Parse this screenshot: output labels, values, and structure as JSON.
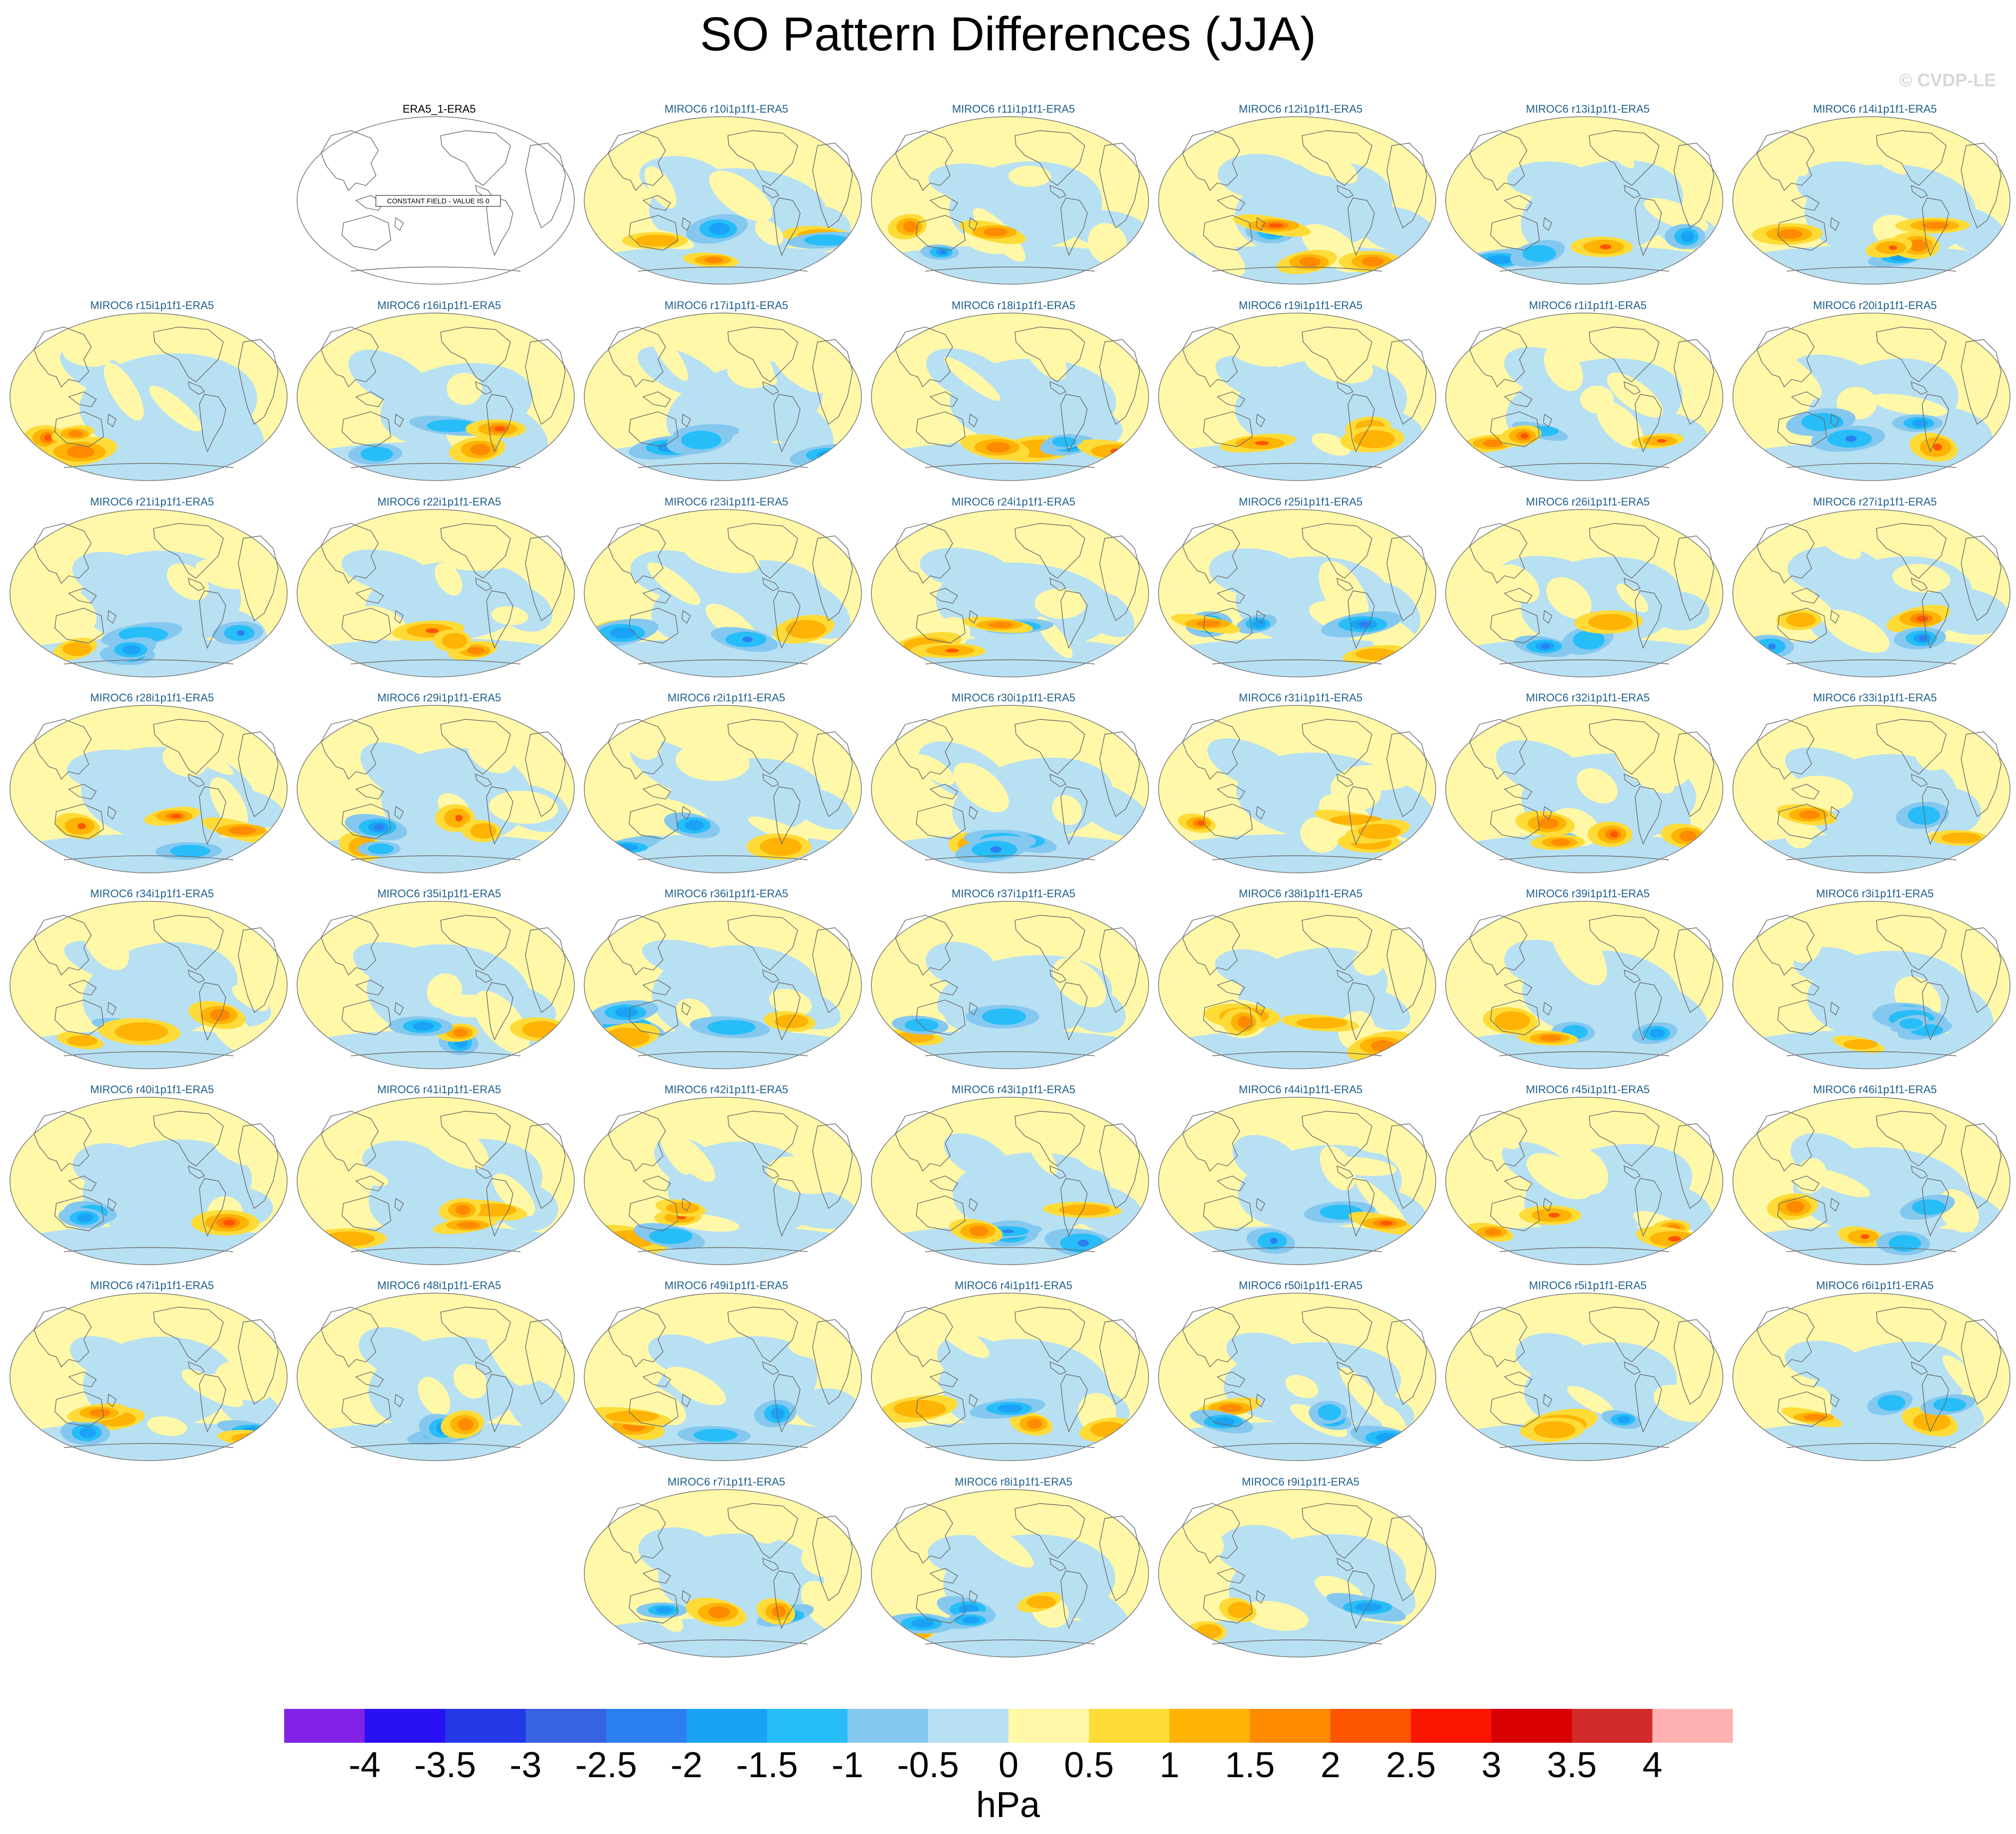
{
  "title": "SO Pattern Differences (JJA)",
  "watermark": "© CVDP-LE",
  "units": "hPa",
  "colorbar": {
    "labels": [
      "-4",
      "-3.5",
      "-3",
      "-2.5",
      "-2",
      "-1.5",
      "-1",
      "-0.5",
      "0",
      "0.5",
      "1",
      "1.5",
      "2",
      "2.5",
      "3",
      "3.5",
      "4"
    ],
    "colors": [
      "#8222e6",
      "#2a10f5",
      "#2438e8",
      "#3762e0",
      "#2b7ff0",
      "#1aa3f6",
      "#27bdf8",
      "#85c8ef",
      "#b8e0f3",
      "#fff8a8",
      "#fedb37",
      "#feb305",
      "#fe8a00",
      "#fe5500",
      "#fc1500",
      "#d80000",
      "#d32a2a",
      "#ffb0b0"
    ]
  },
  "panels": [
    {
      "label": "ERA5_1-ERA5",
      "row": 0,
      "col": 1,
      "observed": true,
      "note": "CONSTANT FIELD - VALUE IS 0"
    },
    {
      "label": "MIROC6 r10i1p1f1-ERA5",
      "row": 0,
      "col": 2
    },
    {
      "label": "MIROC6 r11i1p1f1-ERA5",
      "row": 0,
      "col": 3
    },
    {
      "label": "MIROC6 r12i1p1f1-ERA5",
      "row": 0,
      "col": 4
    },
    {
      "label": "MIROC6 r13i1p1f1-ERA5",
      "row": 0,
      "col": 5
    },
    {
      "label": "MIROC6 r14i1p1f1-ERA5",
      "row": 0,
      "col": 6
    },
    {
      "label": "MIROC6 r15i1p1f1-ERA5",
      "row": 1,
      "col": 0
    },
    {
      "label": "MIROC6 r16i1p1f1-ERA5",
      "row": 1,
      "col": 1
    },
    {
      "label": "MIROC6 r17i1p1f1-ERA5",
      "row": 1,
      "col": 2
    },
    {
      "label": "MIROC6 r18i1p1f1-ERA5",
      "row": 1,
      "col": 3
    },
    {
      "label": "MIROC6 r19i1p1f1-ERA5",
      "row": 1,
      "col": 4
    },
    {
      "label": "MIROC6 r1i1p1f1-ERA5",
      "row": 1,
      "col": 5
    },
    {
      "label": "MIROC6 r20i1p1f1-ERA5",
      "row": 1,
      "col": 6
    },
    {
      "label": "MIROC6 r21i1p1f1-ERA5",
      "row": 2,
      "col": 0
    },
    {
      "label": "MIROC6 r22i1p1f1-ERA5",
      "row": 2,
      "col": 1
    },
    {
      "label": "MIROC6 r23i1p1f1-ERA5",
      "row": 2,
      "col": 2
    },
    {
      "label": "MIROC6 r24i1p1f1-ERA5",
      "row": 2,
      "col": 3
    },
    {
      "label": "MIROC6 r25i1p1f1-ERA5",
      "row": 2,
      "col": 4
    },
    {
      "label": "MIROC6 r26i1p1f1-ERA5",
      "row": 2,
      "col": 5
    },
    {
      "label": "MIROC6 r27i1p1f1-ERA5",
      "row": 2,
      "col": 6
    },
    {
      "label": "MIROC6 r28i1p1f1-ERA5",
      "row": 3,
      "col": 0
    },
    {
      "label": "MIROC6 r29i1p1f1-ERA5",
      "row": 3,
      "col": 1
    },
    {
      "label": "MIROC6 r2i1p1f1-ERA5",
      "row": 3,
      "col": 2
    },
    {
      "label": "MIROC6 r30i1p1f1-ERA5",
      "row": 3,
      "col": 3
    },
    {
      "label": "MIROC6 r31i1p1f1-ERA5",
      "row": 3,
      "col": 4
    },
    {
      "label": "MIROC6 r32i1p1f1-ERA5",
      "row": 3,
      "col": 5
    },
    {
      "label": "MIROC6 r33i1p1f1-ERA5",
      "row": 3,
      "col": 6
    },
    {
      "label": "MIROC6 r34i1p1f1-ERA5",
      "row": 4,
      "col": 0
    },
    {
      "label": "MIROC6 r35i1p1f1-ERA5",
      "row": 4,
      "col": 1
    },
    {
      "label": "MIROC6 r36i1p1f1-ERA5",
      "row": 4,
      "col": 2
    },
    {
      "label": "MIROC6 r37i1p1f1-ERA5",
      "row": 4,
      "col": 3
    },
    {
      "label": "MIROC6 r38i1p1f1-ERA5",
      "row": 4,
      "col": 4
    },
    {
      "label": "MIROC6 r39i1p1f1-ERA5",
      "row": 4,
      "col": 5
    },
    {
      "label": "MIROC6 r3i1p1f1-ERA5",
      "row": 4,
      "col": 6
    },
    {
      "label": "MIROC6 r40i1p1f1-ERA5",
      "row": 5,
      "col": 0
    },
    {
      "label": "MIROC6 r41i1p1f1-ERA5",
      "row": 5,
      "col": 1
    },
    {
      "label": "MIROC6 r42i1p1f1-ERA5",
      "row": 5,
      "col": 2
    },
    {
      "label": "MIROC6 r43i1p1f1-ERA5",
      "row": 5,
      "col": 3
    },
    {
      "label": "MIROC6 r44i1p1f1-ERA5",
      "row": 5,
      "col": 4
    },
    {
      "label": "MIROC6 r45i1p1f1-ERA5",
      "row": 5,
      "col": 5
    },
    {
      "label": "MIROC6 r46i1p1f1-ERA5",
      "row": 5,
      "col": 6
    },
    {
      "label": "MIROC6 r47i1p1f1-ERA5",
      "row": 6,
      "col": 0
    },
    {
      "label": "MIROC6 r48i1p1f1-ERA5",
      "row": 6,
      "col": 1
    },
    {
      "label": "MIROC6 r49i1p1f1-ERA5",
      "row": 6,
      "col": 2
    },
    {
      "label": "MIROC6 r4i1p1f1-ERA5",
      "row": 6,
      "col": 3
    },
    {
      "label": "MIROC6 r50i1p1f1-ERA5",
      "row": 6,
      "col": 4
    },
    {
      "label": "MIROC6 r5i1p1f1-ERA5",
      "row": 6,
      "col": 5
    },
    {
      "label": "MIROC6 r6i1p1f1-ERA5",
      "row": 6,
      "col": 6
    },
    {
      "label": "MIROC6 r7i1p1f1-ERA5",
      "row": 7,
      "col": 2
    },
    {
      "label": "MIROC6 r8i1p1f1-ERA5",
      "row": 7,
      "col": 3
    },
    {
      "label": "MIROC6 r9i1p1f1-ERA5",
      "row": 7,
      "col": 4
    }
  ]
}
